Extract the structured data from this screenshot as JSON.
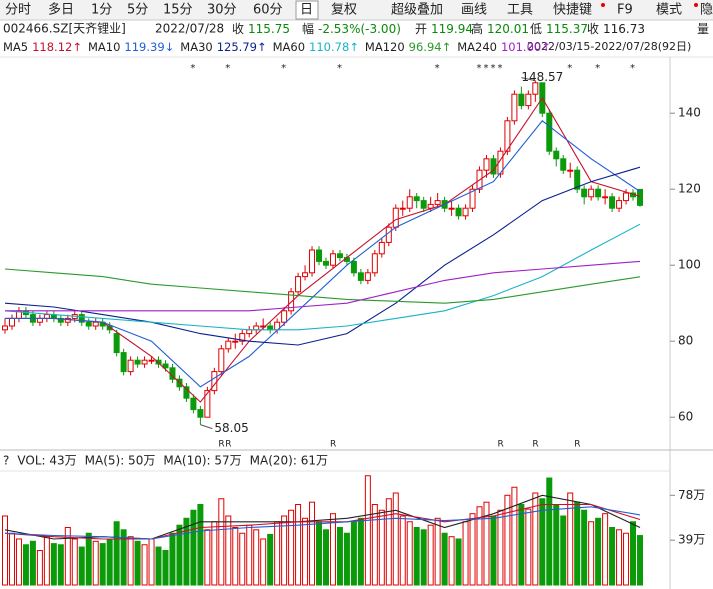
{
  "toolbar": {
    "items": [
      "分时",
      "多日",
      "1分",
      "5分",
      "15分",
      "30分",
      "60分",
      "日",
      "复权",
      "超级叠加",
      "画线",
      "工具",
      "快捷键",
      "F9",
      "模式",
      "隐"
    ],
    "selected": 7
  },
  "info": {
    "code": "002466.SZ[天齐锂业]",
    "date": "2022/07/28",
    "items": [
      {
        "label": "收",
        "value": "115.75",
        "color": "#0a8a0a"
      },
      {
        "label": "幅",
        "value": "-2.53%(-3.00)",
        "color": "#0a8a0a"
      },
      {
        "label": "开",
        "value": "119.94",
        "color": "#0a8a0a"
      },
      {
        "label": "高",
        "value": "120.01",
        "color": "#0a8a0a"
      },
      {
        "label": "低",
        "value": "115.37",
        "color": "#0a8a0a"
      },
      {
        "label": "收",
        "value": "116.73",
        "color": "#222"
      },
      {
        "label": "量",
        "value": "",
        "color": "#222"
      }
    ],
    "range": "2022/03/15-2022/07/28(92日)"
  },
  "chart_data": {
    "type": "candlestick",
    "ylim": [
      54,
      154
    ],
    "yticks": [
      60,
      80,
      100,
      120,
      140
    ],
    "up_color": "#e00000",
    "down_color": "#0a9a0a",
    "ohlc": [
      [
        83,
        86,
        82,
        84
      ],
      [
        84,
        87,
        83,
        86
      ],
      [
        86,
        89,
        85,
        88
      ],
      [
        88,
        89,
        86,
        87
      ],
      [
        87,
        88,
        84,
        85
      ],
      [
        85,
        87,
        84,
        86
      ],
      [
        86,
        88,
        85,
        87
      ],
      [
        87,
        88,
        85,
        86
      ],
      [
        86,
        87,
        84,
        85
      ],
      [
        85,
        87,
        84,
        86
      ],
      [
        86,
        88,
        85,
        87
      ],
      [
        87,
        88,
        84,
        85
      ],
      [
        85,
        86,
        83,
        84
      ],
      [
        84,
        86,
        83,
        85
      ],
      [
        85,
        86,
        83,
        84
      ],
      [
        84,
        85,
        82,
        83
      ],
      [
        82,
        83,
        76,
        77
      ],
      [
        77,
        78,
        71,
        72
      ],
      [
        72,
        76,
        71,
        75
      ],
      [
        75,
        76,
        73,
        74
      ],
      [
        74,
        76,
        73,
        75
      ],
      [
        75,
        76,
        74,
        75
      ],
      [
        75,
        76,
        73,
        74
      ],
      [
        74,
        75,
        72,
        73
      ],
      [
        73,
        74,
        69,
        70
      ],
      [
        70,
        71,
        67,
        68
      ],
      [
        68,
        69,
        64,
        65
      ],
      [
        65,
        66,
        61,
        62
      ],
      [
        62,
        63,
        58.05,
        60
      ],
      [
        60,
        68,
        60,
        67
      ],
      [
        67,
        73,
        66,
        72
      ],
      [
        72,
        79,
        71,
        78
      ],
      [
        78,
        81,
        77,
        80
      ],
      [
        80,
        82,
        78,
        80
      ],
      [
        80,
        83,
        79,
        82
      ],
      [
        82,
        84,
        81,
        83
      ],
      [
        83,
        85,
        82,
        84
      ],
      [
        84,
        86,
        83,
        84
      ],
      [
        84,
        85,
        82,
        83
      ],
      [
        83,
        86,
        82,
        85
      ],
      [
        85,
        89,
        84,
        88
      ],
      [
        88,
        94,
        87,
        93
      ],
      [
        93,
        98,
        92,
        97
      ],
      [
        97,
        100,
        96,
        98
      ],
      [
        98,
        105,
        97,
        104
      ],
      [
        104,
        105,
        100,
        101
      ],
      [
        101,
        102,
        99,
        100
      ],
      [
        100,
        104,
        99,
        103
      ],
      [
        103,
        104,
        101,
        102
      ],
      [
        102,
        103,
        100,
        101
      ],
      [
        101,
        102,
        97,
        98
      ],
      [
        98,
        99,
        95,
        96
      ],
      [
        96,
        99,
        95,
        98
      ],
      [
        98,
        104,
        97,
        103
      ],
      [
        103,
        107,
        102,
        106
      ],
      [
        106,
        111,
        105,
        110
      ],
      [
        110,
        116,
        109,
        115
      ],
      [
        115,
        117,
        113,
        115
      ],
      [
        115,
        120,
        114,
        118
      ],
      [
        118,
        119,
        115,
        117
      ],
      [
        117,
        118,
        114,
        115
      ],
      [
        115,
        118,
        114,
        116
      ],
      [
        116,
        119,
        115,
        117
      ],
      [
        117,
        118,
        114,
        115
      ],
      [
        115,
        117,
        113,
        115
      ],
      [
        115,
        116,
        112,
        113
      ],
      [
        113,
        116,
        112,
        115
      ],
      [
        115,
        121,
        114,
        120
      ],
      [
        120,
        126,
        119,
        125
      ],
      [
        125,
        129,
        123,
        128
      ],
      [
        128,
        129,
        123,
        124
      ],
      [
        124,
        131,
        123,
        130
      ],
      [
        130,
        139,
        129,
        138
      ],
      [
        138,
        146,
        137,
        145
      ],
      [
        145,
        147,
        141,
        142
      ],
      [
        142,
        146,
        141,
        145
      ],
      [
        145,
        148.57,
        143,
        148
      ],
      [
        148,
        148,
        139,
        140
      ],
      [
        140,
        141,
        129,
        130
      ],
      [
        130,
        131,
        126,
        128
      ],
      [
        128,
        129,
        124,
        125
      ],
      [
        125,
        127,
        123,
        125
      ],
      [
        125,
        126,
        119,
        120
      ],
      [
        120,
        121,
        116,
        118
      ],
      [
        118,
        121,
        117,
        120
      ],
      [
        120,
        121,
        117,
        118
      ],
      [
        118,
        120,
        116,
        118
      ],
      [
        118,
        119,
        114,
        115
      ],
      [
        115,
        118,
        114,
        117
      ],
      [
        117,
        120,
        116,
        119
      ],
      [
        119,
        120,
        117,
        118
      ],
      [
        119.94,
        120.01,
        115.37,
        115.75
      ]
    ],
    "ma_x": [
      0,
      7,
      14,
      21,
      28,
      35,
      42,
      49,
      56,
      63,
      70,
      77,
      84,
      91
    ],
    "series": [
      {
        "name": "MA5",
        "label": "118.12↑",
        "color": "#c8102e",
        "values": [
          86,
          86,
          85,
          76,
          64,
          80,
          92,
          102,
          112,
          116,
          125,
          144,
          122,
          118.12
        ]
      },
      {
        "name": "MA10",
        "label": "119.39↓",
        "color": "#1f5fd6",
        "values": [
          86,
          86,
          85,
          80,
          68,
          76,
          88,
          100,
          110,
          116,
          122,
          138,
          128,
          119.39
        ]
      },
      {
        "name": "MA30",
        "label": "125.79↑",
        "color": "#0a1f8f",
        "values": [
          90,
          89,
          87,
          85,
          82,
          80,
          79,
          82,
          90,
          100,
          108,
          117,
          122,
          125.79
        ]
      },
      {
        "name": "MA60",
        "label": "110.78↑",
        "color": "#17b3c8",
        "values": [
          88,
          87,
          86,
          85,
          84,
          83,
          83,
          84,
          86,
          88,
          92,
          97,
          104,
          110.78
        ]
      },
      {
        "name": "MA120",
        "label": "96.94↑",
        "color": "#2a9a2a",
        "values": [
          99,
          98,
          97,
          95,
          94,
          93,
          92,
          91,
          90.5,
          90,
          91,
          93,
          95,
          96.94
        ]
      },
      {
        "name": "MA240",
        "label": "101.00↑",
        "color": "#a01fc8",
        "values": [
          88,
          88,
          88,
          88,
          88,
          88,
          89,
          90,
          93,
          96,
          98,
          99,
          100,
          101
        ]
      }
    ],
    "annotations": [
      {
        "value": 148.57,
        "index": 76
      },
      {
        "value": 58.05,
        "index": 28
      }
    ],
    "stars": {
      "label": "*",
      "at": [
        27,
        32,
        40,
        48,
        62,
        68,
        69,
        70,
        71,
        81,
        85,
        90
      ]
    },
    "r_marks": {
      "label": "R",
      "at": [
        31,
        32,
        47,
        71,
        76,
        82
      ]
    }
  },
  "volume": {
    "header": [
      {
        "text": "?",
        "color": "#222"
      },
      {
        "text": "VOL: 43万",
        "color": "#222"
      },
      {
        "text": "MA(5): 50万",
        "color": "#222"
      },
      {
        "text": "MA(10): 57万",
        "color": "#c8102e"
      },
      {
        "text": "MA(20): 61万",
        "color": "#1f5fd6"
      }
    ],
    "ylim": [
      0,
      100
    ],
    "yticks": [
      {
        "value": 39,
        "label": "39万"
      },
      {
        "value": 78,
        "label": "78万"
      }
    ],
    "values": [
      60,
      45,
      40,
      35,
      38,
      30,
      42,
      36,
      35,
      50,
      40,
      33,
      45,
      38,
      36,
      40,
      55,
      48,
      42,
      38,
      35,
      40,
      33,
      30,
      45,
      52,
      58,
      65,
      70,
      48,
      55,
      75,
      60,
      50,
      45,
      52,
      48,
      40,
      44,
      55,
      60,
      65,
      70,
      58,
      72,
      55,
      48,
      62,
      50,
      45,
      55,
      58,
      95,
      70,
      65,
      75,
      80,
      60,
      55,
      50,
      48,
      52,
      58,
      45,
      42,
      40,
      55,
      62,
      68,
      72,
      60,
      65,
      78,
      85,
      70,
      66,
      80,
      75,
      93,
      70,
      60,
      80,
      72,
      65,
      55,
      58,
      62,
      50,
      48,
      45,
      55,
      43
    ],
    "series": [
      {
        "color": "#222",
        "values": [
          48,
          40,
          42,
          40,
          55,
          55,
          55,
          58,
          65,
          50,
          62,
          78,
          70,
          50
        ]
      },
      {
        "color": "#c8102e",
        "values": [
          45,
          42,
          40,
          40,
          50,
          52,
          55,
          55,
          62,
          55,
          60,
          70,
          70,
          57
        ]
      },
      {
        "color": "#1f5fd6",
        "values": [
          45,
          43,
          42,
          40,
          47,
          50,
          52,
          55,
          58,
          56,
          58,
          65,
          68,
          61
        ]
      }
    ]
  }
}
